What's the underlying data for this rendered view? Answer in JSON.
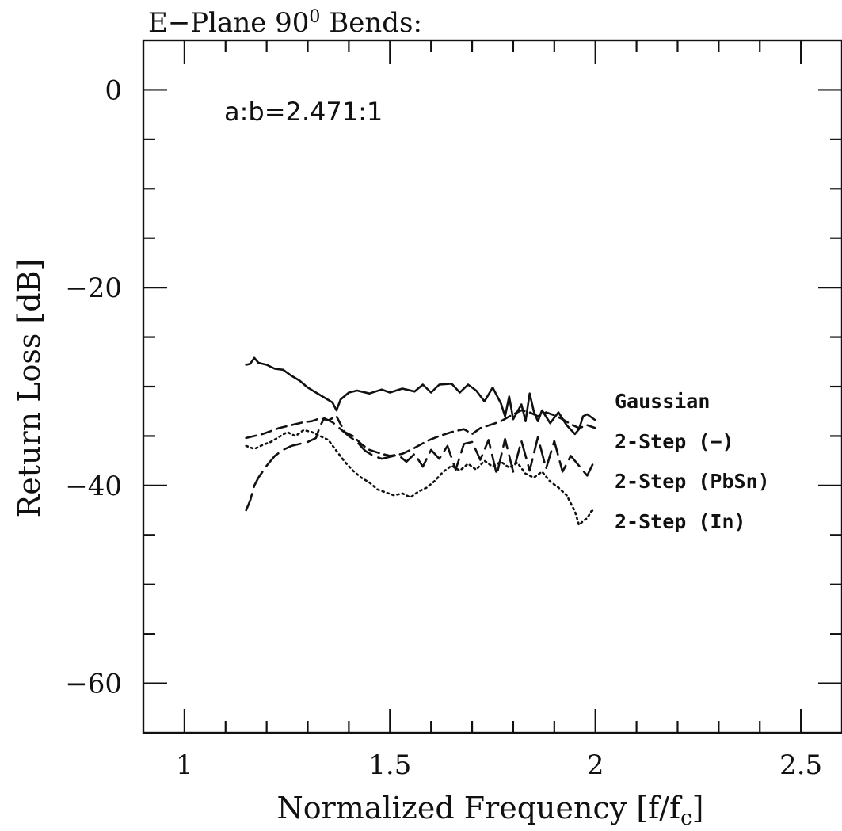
{
  "chart_data": {
    "type": "line",
    "title": "E−Plane 90",
    "title_sup": "0",
    "title_tail": " Bends:",
    "annotation": "a:b=2.471:1",
    "xlabel": "Normalized Frequency [f/f",
    "xlabel_sub": "c",
    "xlabel_tail": "]",
    "ylabel": "Return Loss [dB]",
    "xlim": [
      0.9,
      2.6
    ],
    "ylim": [
      -65,
      5
    ],
    "xticks": [
      1,
      1.5,
      2,
      2.5
    ],
    "xtick_labels": [
      "1",
      "1.5",
      "2",
      "2.5"
    ],
    "yticks": [
      0,
      -20,
      -40,
      -60
    ],
    "ytick_labels": [
      "0",
      "−20",
      "−40",
      "−60"
    ],
    "grid": false,
    "legend_placement": "right",
    "series": [
      {
        "name": "Gaussian",
        "dash": "solid",
        "points": [
          [
            1.15,
            -27.8
          ],
          [
            1.16,
            -27.7
          ],
          [
            1.17,
            -27.1
          ],
          [
            1.18,
            -27.6
          ],
          [
            1.2,
            -27.8
          ],
          [
            1.22,
            -28.2
          ],
          [
            1.24,
            -28.3
          ],
          [
            1.26,
            -28.9
          ],
          [
            1.28,
            -29.4
          ],
          [
            1.3,
            -30.1
          ],
          [
            1.32,
            -30.6
          ],
          [
            1.34,
            -31.1
          ],
          [
            1.36,
            -31.6
          ],
          [
            1.37,
            -32.4
          ],
          [
            1.38,
            -31.3
          ],
          [
            1.4,
            -30.6
          ],
          [
            1.42,
            -30.4
          ],
          [
            1.45,
            -30.7
          ],
          [
            1.48,
            -30.3
          ],
          [
            1.5,
            -30.6
          ],
          [
            1.53,
            -30.2
          ],
          [
            1.56,
            -30.5
          ],
          [
            1.58,
            -29.8
          ],
          [
            1.6,
            -30.6
          ],
          [
            1.62,
            -29.8
          ],
          [
            1.65,
            -29.7
          ],
          [
            1.67,
            -30.6
          ],
          [
            1.69,
            -29.8
          ],
          [
            1.71,
            -30.4
          ],
          [
            1.73,
            -31.5
          ],
          [
            1.75,
            -30.1
          ],
          [
            1.77,
            -31.7
          ],
          [
            1.78,
            -33.0
          ],
          [
            1.79,
            -31.0
          ],
          [
            1.8,
            -33.3
          ],
          [
            1.82,
            -31.8
          ],
          [
            1.83,
            -33.5
          ],
          [
            1.84,
            -30.7
          ],
          [
            1.85,
            -32.5
          ],
          [
            1.86,
            -33.5
          ],
          [
            1.87,
            -32.4
          ],
          [
            1.89,
            -33.7
          ],
          [
            1.91,
            -32.6
          ],
          [
            1.93,
            -33.9
          ],
          [
            1.95,
            -34.8
          ],
          [
            1.96,
            -34.3
          ],
          [
            1.97,
            -33.0
          ],
          [
            1.98,
            -32.8
          ],
          [
            2.0,
            -33.4
          ]
        ]
      },
      {
        "name": "2-Step (−)",
        "dash": "dashed",
        "points": [
          [
            1.15,
            -35.2
          ],
          [
            1.17,
            -35.0
          ],
          [
            1.19,
            -34.8
          ],
          [
            1.21,
            -34.5
          ],
          [
            1.23,
            -34.2
          ],
          [
            1.25,
            -34.0
          ],
          [
            1.27,
            -33.8
          ],
          [
            1.29,
            -33.6
          ],
          [
            1.31,
            -33.5
          ],
          [
            1.33,
            -33.2
          ],
          [
            1.35,
            -33.4
          ],
          [
            1.37,
            -33.0
          ],
          [
            1.39,
            -34.6
          ],
          [
            1.41,
            -35.0
          ],
          [
            1.43,
            -35.8
          ],
          [
            1.45,
            -36.4
          ],
          [
            1.48,
            -36.8
          ],
          [
            1.5,
            -37.0
          ],
          [
            1.53,
            -36.8
          ],
          [
            1.56,
            -36.2
          ],
          [
            1.59,
            -35.5
          ],
          [
            1.62,
            -35.0
          ],
          [
            1.65,
            -34.6
          ],
          [
            1.68,
            -34.3
          ],
          [
            1.7,
            -34.8
          ],
          [
            1.72,
            -34.2
          ],
          [
            1.75,
            -33.8
          ],
          [
            1.77,
            -33.5
          ],
          [
            1.8,
            -32.8
          ],
          [
            1.82,
            -32.4
          ],
          [
            1.84,
            -32.6
          ],
          [
            1.86,
            -33.0
          ],
          [
            1.88,
            -32.6
          ],
          [
            1.9,
            -32.9
          ],
          [
            1.92,
            -33.3
          ],
          [
            1.94,
            -33.8
          ],
          [
            1.96,
            -34.2
          ],
          [
            1.98,
            -33.9
          ],
          [
            2.0,
            -34.2
          ]
        ]
      },
      {
        "name": "2-Step (PbSn)",
        "dash": "longdash",
        "points": [
          [
            1.15,
            -42.5
          ],
          [
            1.16,
            -41.5
          ],
          [
            1.17,
            -40.0
          ],
          [
            1.18,
            -39.2
          ],
          [
            1.2,
            -38.0
          ],
          [
            1.22,
            -37.0
          ],
          [
            1.24,
            -36.4
          ],
          [
            1.26,
            -36.0
          ],
          [
            1.28,
            -35.8
          ],
          [
            1.3,
            -35.6
          ],
          [
            1.32,
            -35.2
          ],
          [
            1.33,
            -34.0
          ],
          [
            1.34,
            -33.2
          ],
          [
            1.36,
            -33.6
          ],
          [
            1.38,
            -34.3
          ],
          [
            1.4,
            -35.0
          ],
          [
            1.42,
            -35.6
          ],
          [
            1.44,
            -36.5
          ],
          [
            1.46,
            -37.0
          ],
          [
            1.48,
            -37.3
          ],
          [
            1.5,
            -37.1
          ],
          [
            1.52,
            -36.9
          ],
          [
            1.54,
            -37.6
          ],
          [
            1.56,
            -36.8
          ],
          [
            1.58,
            -38.1
          ],
          [
            1.6,
            -36.4
          ],
          [
            1.62,
            -37.3
          ],
          [
            1.64,
            -36.0
          ],
          [
            1.66,
            -38.4
          ],
          [
            1.68,
            -35.8
          ],
          [
            1.7,
            -35.6
          ],
          [
            1.72,
            -37.4
          ],
          [
            1.74,
            -35.4
          ],
          [
            1.76,
            -38.9
          ],
          [
            1.78,
            -35.3
          ],
          [
            1.8,
            -38.6
          ],
          [
            1.82,
            -35.5
          ],
          [
            1.84,
            -38.5
          ],
          [
            1.86,
            -35.1
          ],
          [
            1.88,
            -38.3
          ],
          [
            1.9,
            -35.5
          ],
          [
            1.92,
            -38.6
          ],
          [
            1.94,
            -37.0
          ],
          [
            1.96,
            -38.0
          ],
          [
            1.98,
            -39.0
          ],
          [
            2.0,
            -37.3
          ]
        ]
      },
      {
        "name": "2-Step (In)",
        "dash": "dotted",
        "points": [
          [
            1.15,
            -36.0
          ],
          [
            1.17,
            -36.3
          ],
          [
            1.19,
            -35.9
          ],
          [
            1.21,
            -35.6
          ],
          [
            1.23,
            -35.1
          ],
          [
            1.25,
            -34.6
          ],
          [
            1.27,
            -35.0
          ],
          [
            1.29,
            -34.4
          ],
          [
            1.31,
            -34.6
          ],
          [
            1.33,
            -35.0
          ],
          [
            1.35,
            -35.4
          ],
          [
            1.37,
            -36.5
          ],
          [
            1.39,
            -37.6
          ],
          [
            1.41,
            -38.5
          ],
          [
            1.43,
            -39.2
          ],
          [
            1.45,
            -39.7
          ],
          [
            1.47,
            -40.4
          ],
          [
            1.49,
            -40.7
          ],
          [
            1.51,
            -41.0
          ],
          [
            1.53,
            -40.8
          ],
          [
            1.55,
            -41.2
          ],
          [
            1.57,
            -40.6
          ],
          [
            1.59,
            -40.2
          ],
          [
            1.61,
            -39.5
          ],
          [
            1.63,
            -38.6
          ],
          [
            1.65,
            -38.0
          ],
          [
            1.67,
            -38.5
          ],
          [
            1.69,
            -37.8
          ],
          [
            1.71,
            -38.4
          ],
          [
            1.73,
            -37.5
          ],
          [
            1.75,
            -38.1
          ],
          [
            1.77,
            -37.6
          ],
          [
            1.79,
            -38.2
          ],
          [
            1.81,
            -37.7
          ],
          [
            1.83,
            -38.8
          ],
          [
            1.85,
            -39.2
          ],
          [
            1.87,
            -38.6
          ],
          [
            1.89,
            -39.6
          ],
          [
            1.91,
            -40.2
          ],
          [
            1.93,
            -41.0
          ],
          [
            1.95,
            -42.6
          ],
          [
            1.96,
            -44.0
          ],
          [
            1.97,
            -43.6
          ],
          [
            1.98,
            -43.3
          ],
          [
            1.99,
            -42.6
          ],
          [
            2.0,
            -42.4
          ]
        ]
      }
    ]
  }
}
